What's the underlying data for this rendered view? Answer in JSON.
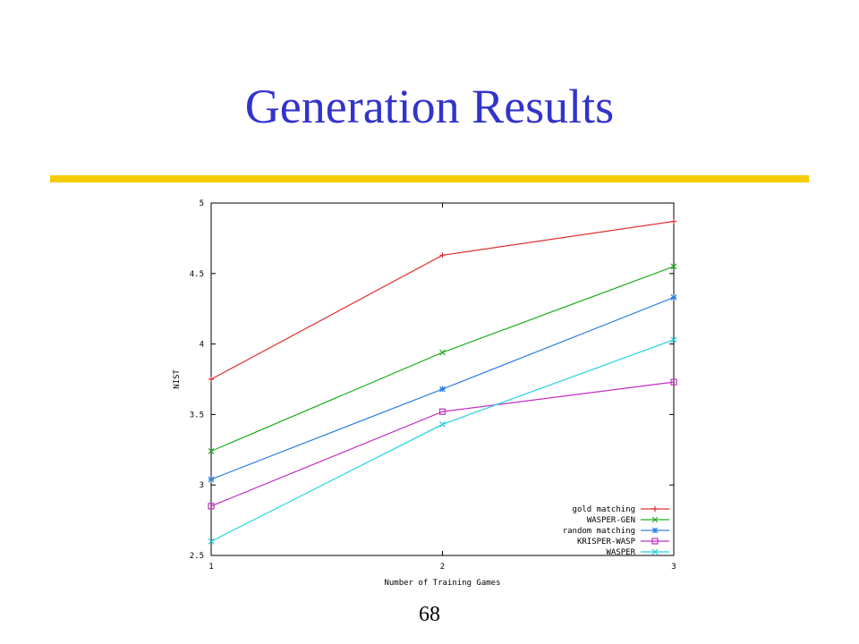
{
  "slide": {
    "title": "Generation Results",
    "page_number": "68",
    "rule_color": "#f4cc00",
    "title_color": "#3333cc"
  },
  "chart_data": {
    "type": "line",
    "title": "",
    "xlabel": "Number of Training Games",
    "ylabel": "NIST",
    "x": [
      1,
      2,
      3
    ],
    "xlim": [
      1,
      3
    ],
    "ylim": [
      2.5,
      5
    ],
    "x_ticks": [
      "1",
      "2",
      "3"
    ],
    "y_ticks": [
      "2.5",
      "3",
      "3.5",
      "4",
      "4.5",
      "5"
    ],
    "grid": false,
    "legend_position": "bottom-right",
    "series": [
      {
        "name": "gold matching",
        "values": [
          3.75,
          4.63,
          4.87
        ],
        "color": "#e03030",
        "marker": "plus"
      },
      {
        "name": "WASPER-GEN",
        "values": [
          3.24,
          3.94,
          4.55
        ],
        "color": "#20b020",
        "marker": "cross"
      },
      {
        "name": "random matching",
        "values": [
          3.04,
          3.68,
          4.33
        ],
        "color": "#3080e0",
        "marker": "star"
      },
      {
        "name": "KRISPER-WASP",
        "values": [
          2.85,
          3.52,
          3.73
        ],
        "color": "#c030c0",
        "marker": "square"
      },
      {
        "name": "WASPER",
        "values": [
          2.6,
          3.43,
          4.03
        ],
        "color": "#20d0e0",
        "marker": "cross"
      }
    ]
  }
}
